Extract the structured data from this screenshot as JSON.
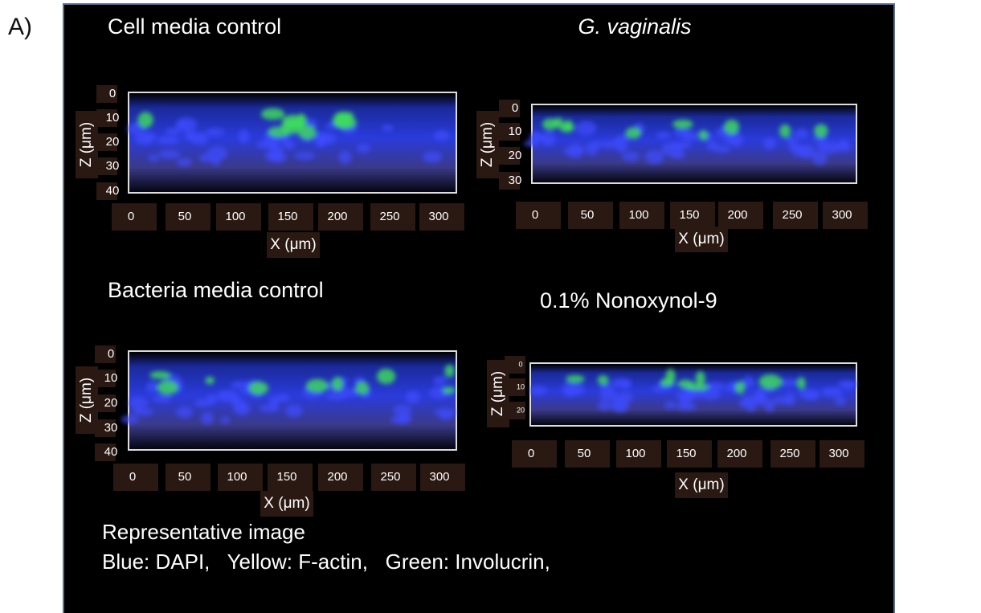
{
  "panel_label": "A)",
  "panels": [
    {
      "title": "Cell media control",
      "z_label": "Z (μm)",
      "z_ticks": [
        0,
        10,
        20,
        30,
        40
      ],
      "x_label": "X (μm)",
      "x_ticks": [
        0,
        50,
        100,
        150,
        200,
        250,
        300
      ]
    },
    {
      "title": "G. vaginalis",
      "z_label": "Z (μm)",
      "z_ticks": [
        0,
        10,
        20,
        30
      ],
      "x_label": "X (μm)",
      "x_ticks": [
        0,
        50,
        100,
        150,
        200,
        250,
        300
      ]
    },
    {
      "title": "Bacteria media control",
      "z_label": "Z (μm)",
      "z_ticks": [
        0,
        10,
        20,
        30,
        40
      ],
      "x_label": "X (μm)",
      "x_ticks": [
        0,
        50,
        100,
        150,
        200,
        250,
        300
      ]
    },
    {
      "title": "0.1% Nonoxynol-9",
      "z_label": "Z (μm)",
      "z_ticks": [
        0,
        10,
        20
      ],
      "x_label": "X (μm)",
      "x_ticks": [
        0,
        50,
        100,
        150,
        200,
        250,
        300
      ]
    }
  ],
  "caption": [
    "Representative image",
    "Blue: DAPI,   Yellow: F-actin,   Green: Involucrin,"
  ]
}
